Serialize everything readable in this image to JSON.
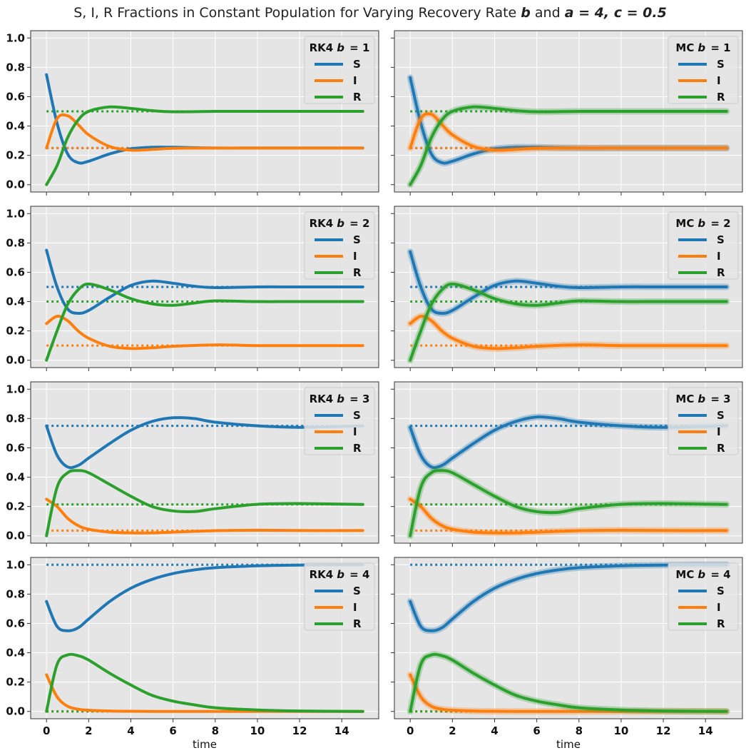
{
  "figure": {
    "title": "S, I, R Fractions in Constant Population for Varying Recovery Rate b and a = 4, c = 0.5",
    "title_parts": [
      "S, I, R Fractions in Constant Population for Varying Recovery Rate ",
      "b",
      " and ",
      "a = 4, c = 0.5"
    ]
  },
  "colors": {
    "S": "#1f77b4",
    "I": "#ff7f0e",
    "R": "#2ca02c",
    "panel_bg": "#e5e5e5",
    "grid": "#ffffff"
  },
  "chart_data": [
    {
      "type": "line",
      "panel": "RK4 b=1",
      "legend_title": "RK4",
      "b": 1,
      "xlim": [
        -0.75,
        15.75
      ],
      "ylim": [
        -0.05,
        1.05
      ],
      "xticks": [
        0,
        2,
        4,
        6,
        8,
        10,
        12,
        14
      ],
      "yticks": [
        0.0,
        0.2,
        0.4,
        0.6,
        0.8,
        1.0
      ],
      "xlabel": "",
      "grid": true,
      "legend": "top-right",
      "equilibrium": {
        "S": 0.25,
        "I": 0.25,
        "R": 0.5
      },
      "series": [
        {
          "name": "S",
          "x": [
            0,
            0.5,
            1,
            1.5,
            2,
            3,
            4,
            5,
            6,
            8,
            10,
            12,
            15
          ],
          "y": [
            0.75,
            0.42,
            0.21,
            0.15,
            0.16,
            0.21,
            0.245,
            0.255,
            0.255,
            0.25,
            0.25,
            0.25,
            0.25
          ]
        },
        {
          "name": "I",
          "x": [
            0,
            0.5,
            1,
            1.5,
            2,
            3,
            4,
            5,
            6,
            8,
            10,
            12,
            15
          ],
          "y": [
            0.25,
            0.45,
            0.47,
            0.41,
            0.34,
            0.26,
            0.235,
            0.24,
            0.248,
            0.25,
            0.25,
            0.25,
            0.25
          ]
        },
        {
          "name": "R",
          "x": [
            0,
            0.5,
            1,
            1.5,
            2,
            3,
            4,
            5,
            6,
            8,
            10,
            12,
            15
          ],
          "y": [
            0.0,
            0.13,
            0.32,
            0.44,
            0.5,
            0.53,
            0.52,
            0.505,
            0.497,
            0.5,
            0.5,
            0.5,
            0.5
          ]
        }
      ]
    },
    {
      "type": "line",
      "panel": "MC b=1",
      "legend_title": "MC",
      "b": 1,
      "xlim": [
        -0.75,
        15.75
      ],
      "ylim": [
        -0.05,
        1.05
      ],
      "xticks": [
        0,
        2,
        4,
        6,
        8,
        10,
        12,
        14
      ],
      "yticks": [
        0.0,
        0.2,
        0.4,
        0.6,
        0.8,
        1.0
      ],
      "xlabel": "",
      "grid": true,
      "legend": "top-right",
      "equilibrium": {
        "S": 0.25,
        "I": 0.25,
        "R": 0.5
      },
      "series": [
        {
          "name": "S",
          "x": [
            0,
            0.5,
            1,
            1.5,
            2,
            3,
            4,
            5,
            6,
            8,
            10,
            12,
            15
          ],
          "y": [
            0.73,
            0.42,
            0.21,
            0.15,
            0.16,
            0.21,
            0.245,
            0.255,
            0.255,
            0.25,
            0.25,
            0.25,
            0.25
          ]
        },
        {
          "name": "I",
          "x": [
            0,
            0.5,
            1,
            1.5,
            2,
            3,
            4,
            5,
            6,
            8,
            10,
            12,
            15
          ],
          "y": [
            0.25,
            0.45,
            0.48,
            0.41,
            0.34,
            0.26,
            0.235,
            0.24,
            0.248,
            0.25,
            0.25,
            0.25,
            0.25
          ]
        },
        {
          "name": "R",
          "x": [
            0,
            0.5,
            1,
            1.5,
            2,
            3,
            4,
            5,
            6,
            8,
            10,
            12,
            15
          ],
          "y": [
            0.0,
            0.13,
            0.32,
            0.44,
            0.5,
            0.53,
            0.52,
            0.505,
            0.497,
            0.5,
            0.5,
            0.5,
            0.5
          ]
        }
      ]
    },
    {
      "type": "line",
      "panel": "RK4 b=2",
      "legend_title": "RK4",
      "b": 2,
      "xlim": [
        -0.75,
        15.75
      ],
      "ylim": [
        -0.05,
        1.05
      ],
      "xticks": [
        0,
        2,
        4,
        6,
        8,
        10,
        12,
        14
      ],
      "yticks": [
        0.0,
        0.2,
        0.4,
        0.6,
        0.8,
        1.0
      ],
      "xlabel": "",
      "grid": true,
      "legend": "top-right",
      "equilibrium": {
        "S": 0.5,
        "I": 0.1,
        "R": 0.4
      },
      "series": [
        {
          "name": "S",
          "x": [
            0,
            0.5,
            1,
            1.5,
            2,
            3,
            4,
            5,
            6,
            7,
            8,
            10,
            12,
            15
          ],
          "y": [
            0.75,
            0.5,
            0.35,
            0.32,
            0.34,
            0.43,
            0.51,
            0.54,
            0.525,
            0.505,
            0.495,
            0.5,
            0.5,
            0.5
          ]
        },
        {
          "name": "I",
          "x": [
            0,
            0.5,
            1,
            1.5,
            2,
            3,
            4,
            5,
            6,
            8,
            10,
            12,
            15
          ],
          "y": [
            0.25,
            0.3,
            0.27,
            0.2,
            0.15,
            0.095,
            0.08,
            0.085,
            0.095,
            0.105,
            0.1,
            0.1,
            0.1
          ]
        },
        {
          "name": "R",
          "x": [
            0,
            0.5,
            1,
            1.5,
            2,
            3,
            4,
            5,
            6,
            7,
            8,
            10,
            12,
            15
          ],
          "y": [
            0.0,
            0.2,
            0.38,
            0.48,
            0.52,
            0.48,
            0.42,
            0.385,
            0.375,
            0.39,
            0.405,
            0.4,
            0.4,
            0.4
          ]
        }
      ]
    },
    {
      "type": "line",
      "panel": "MC b=2",
      "legend_title": "MC",
      "b": 2,
      "xlim": [
        -0.75,
        15.75
      ],
      "ylim": [
        -0.05,
        1.05
      ],
      "xticks": [
        0,
        2,
        4,
        6,
        8,
        10,
        12,
        14
      ],
      "yticks": [
        0.0,
        0.2,
        0.4,
        0.6,
        0.8,
        1.0
      ],
      "xlabel": "",
      "grid": true,
      "legend": "top-right",
      "equilibrium": {
        "S": 0.5,
        "I": 0.1,
        "R": 0.4
      },
      "series": [
        {
          "name": "S",
          "x": [
            0,
            0.5,
            1,
            1.5,
            2,
            3,
            4,
            5,
            6,
            7,
            8,
            10,
            12,
            15
          ],
          "y": [
            0.74,
            0.5,
            0.35,
            0.32,
            0.34,
            0.43,
            0.51,
            0.54,
            0.525,
            0.505,
            0.495,
            0.5,
            0.5,
            0.5
          ]
        },
        {
          "name": "I",
          "x": [
            0,
            0.5,
            1,
            1.5,
            2,
            3,
            4,
            5,
            6,
            8,
            10,
            12,
            15
          ],
          "y": [
            0.25,
            0.3,
            0.27,
            0.2,
            0.15,
            0.095,
            0.08,
            0.085,
            0.095,
            0.105,
            0.1,
            0.1,
            0.1
          ]
        },
        {
          "name": "R",
          "x": [
            0,
            0.5,
            1,
            1.5,
            2,
            3,
            4,
            5,
            6,
            7,
            8,
            10,
            12,
            15
          ],
          "y": [
            0.0,
            0.2,
            0.38,
            0.48,
            0.52,
            0.48,
            0.42,
            0.385,
            0.375,
            0.39,
            0.405,
            0.4,
            0.4,
            0.4
          ]
        }
      ]
    },
    {
      "type": "line",
      "panel": "RK4 b=3",
      "legend_title": "RK4",
      "b": 3,
      "xlim": [
        -0.75,
        15.75
      ],
      "ylim": [
        -0.05,
        1.05
      ],
      "xticks": [
        0,
        2,
        4,
        6,
        8,
        10,
        12,
        14
      ],
      "yticks": [
        0.0,
        0.2,
        0.4,
        0.6,
        0.8,
        1.0
      ],
      "xlabel": "",
      "grid": true,
      "legend": "top-right",
      "equilibrium": {
        "S": 0.75,
        "I": 0.036,
        "R": 0.214
      },
      "series": [
        {
          "name": "S",
          "x": [
            0,
            0.5,
            1,
            1.5,
            2,
            3,
            4,
            5,
            6,
            7,
            8,
            10,
            12,
            15
          ],
          "y": [
            0.75,
            0.55,
            0.47,
            0.48,
            0.53,
            0.63,
            0.72,
            0.78,
            0.805,
            0.8,
            0.775,
            0.75,
            0.74,
            0.75
          ]
        },
        {
          "name": "I",
          "x": [
            0,
            0.5,
            1,
            1.5,
            2,
            3,
            4,
            5,
            6,
            8,
            10,
            12,
            15
          ],
          "y": [
            0.25,
            0.2,
            0.12,
            0.07,
            0.045,
            0.025,
            0.02,
            0.02,
            0.025,
            0.035,
            0.038,
            0.036,
            0.036
          ]
        },
        {
          "name": "R",
          "x": [
            0,
            0.5,
            1,
            1.5,
            2,
            3,
            4,
            5,
            6,
            7,
            8,
            10,
            12,
            15
          ],
          "y": [
            0.0,
            0.33,
            0.43,
            0.445,
            0.43,
            0.35,
            0.27,
            0.2,
            0.17,
            0.165,
            0.185,
            0.215,
            0.22,
            0.214
          ]
        }
      ]
    },
    {
      "type": "line",
      "panel": "MC b=3",
      "legend_title": "MC",
      "b": 3,
      "xlim": [
        -0.75,
        15.75
      ],
      "ylim": [
        -0.05,
        1.05
      ],
      "xticks": [
        0,
        2,
        4,
        6,
        8,
        10,
        12,
        14
      ],
      "yticks": [
        0.0,
        0.2,
        0.4,
        0.6,
        0.8,
        1.0
      ],
      "xlabel": "",
      "grid": true,
      "legend": "top-right",
      "equilibrium": {
        "S": 0.75,
        "I": 0.036,
        "R": 0.214
      },
      "series": [
        {
          "name": "S",
          "x": [
            0,
            0.5,
            1,
            1.5,
            2,
            3,
            4,
            5,
            6,
            7,
            8,
            10,
            12,
            15
          ],
          "y": [
            0.74,
            0.55,
            0.47,
            0.48,
            0.53,
            0.63,
            0.72,
            0.78,
            0.81,
            0.8,
            0.775,
            0.75,
            0.74,
            0.75
          ]
        },
        {
          "name": "I",
          "x": [
            0,
            0.5,
            1,
            1.5,
            2,
            3,
            4,
            5,
            6,
            8,
            10,
            12,
            15
          ],
          "y": [
            0.25,
            0.2,
            0.12,
            0.07,
            0.045,
            0.025,
            0.02,
            0.02,
            0.025,
            0.035,
            0.038,
            0.036,
            0.036
          ]
        },
        {
          "name": "R",
          "x": [
            0,
            0.5,
            1,
            1.5,
            2,
            3,
            4,
            5,
            6,
            7,
            8,
            10,
            12,
            15
          ],
          "y": [
            0.0,
            0.33,
            0.43,
            0.445,
            0.43,
            0.35,
            0.27,
            0.2,
            0.165,
            0.16,
            0.185,
            0.215,
            0.22,
            0.214
          ]
        }
      ]
    },
    {
      "type": "line",
      "panel": "RK4 b=4",
      "legend_title": "RK4",
      "b": 4,
      "xlim": [
        -0.75,
        15.75
      ],
      "ylim": [
        -0.05,
        1.05
      ],
      "xticks": [
        0,
        2,
        4,
        6,
        8,
        10,
        12,
        14
      ],
      "yticks": [
        0.0,
        0.2,
        0.4,
        0.6,
        0.8,
        1.0
      ],
      "xlabel": "time",
      "grid": true,
      "legend": "top-right",
      "equilibrium": {
        "S": 1.0,
        "I": 0.0,
        "R": 0.0
      },
      "series": [
        {
          "name": "S",
          "x": [
            0,
            0.5,
            1,
            1.5,
            2,
            3,
            4,
            5,
            6,
            7,
            8,
            10,
            12,
            15
          ],
          "y": [
            0.75,
            0.58,
            0.55,
            0.57,
            0.63,
            0.75,
            0.84,
            0.9,
            0.94,
            0.965,
            0.98,
            0.993,
            0.998,
            1.0
          ]
        },
        {
          "name": "I",
          "x": [
            0,
            0.5,
            1,
            1.5,
            2,
            3,
            4,
            5,
            6,
            8,
            10,
            12,
            15
          ],
          "y": [
            0.25,
            0.1,
            0.035,
            0.015,
            0.008,
            0.003,
            0.001,
            0.0,
            0.0,
            0.0,
            0.0,
            0.0,
            0.0
          ]
        },
        {
          "name": "R",
          "x": [
            0,
            0.5,
            1,
            1.5,
            2,
            3,
            4,
            5,
            6,
            7,
            8,
            10,
            12,
            15
          ],
          "y": [
            0.0,
            0.32,
            0.385,
            0.38,
            0.35,
            0.26,
            0.18,
            0.11,
            0.07,
            0.045,
            0.025,
            0.01,
            0.003,
            0.0
          ]
        }
      ]
    },
    {
      "type": "line",
      "panel": "MC b=4",
      "legend_title": "MC",
      "b": 4,
      "xlim": [
        -0.75,
        15.75
      ],
      "ylim": [
        -0.05,
        1.05
      ],
      "xticks": [
        0,
        2,
        4,
        6,
        8,
        10,
        12,
        14
      ],
      "yticks": [
        0.0,
        0.2,
        0.4,
        0.6,
        0.8,
        1.0
      ],
      "xlabel": "time",
      "grid": true,
      "legend": "top-right",
      "equilibrium": {
        "S": 1.0,
        "I": 0.0,
        "R": 0.0
      },
      "series": [
        {
          "name": "S",
          "x": [
            0,
            0.5,
            1,
            1.5,
            2,
            3,
            4,
            5,
            6,
            7,
            8,
            10,
            12,
            15
          ],
          "y": [
            0.75,
            0.58,
            0.55,
            0.57,
            0.63,
            0.75,
            0.84,
            0.9,
            0.94,
            0.965,
            0.98,
            0.993,
            0.998,
            1.0
          ]
        },
        {
          "name": "I",
          "x": [
            0,
            0.5,
            1,
            1.5,
            2,
            3,
            4,
            5,
            6,
            8,
            10,
            12,
            15
          ],
          "y": [
            0.25,
            0.1,
            0.035,
            0.015,
            0.008,
            0.003,
            0.001,
            0.0,
            0.0,
            0.0,
            0.0,
            0.0,
            0.0
          ]
        },
        {
          "name": "R",
          "x": [
            0,
            0.5,
            1,
            1.5,
            2,
            3,
            4,
            5,
            6,
            7,
            8,
            10,
            12,
            15
          ],
          "y": [
            0.0,
            0.32,
            0.385,
            0.38,
            0.35,
            0.26,
            0.18,
            0.11,
            0.07,
            0.045,
            0.025,
            0.01,
            0.003,
            0.0
          ]
        }
      ]
    }
  ]
}
